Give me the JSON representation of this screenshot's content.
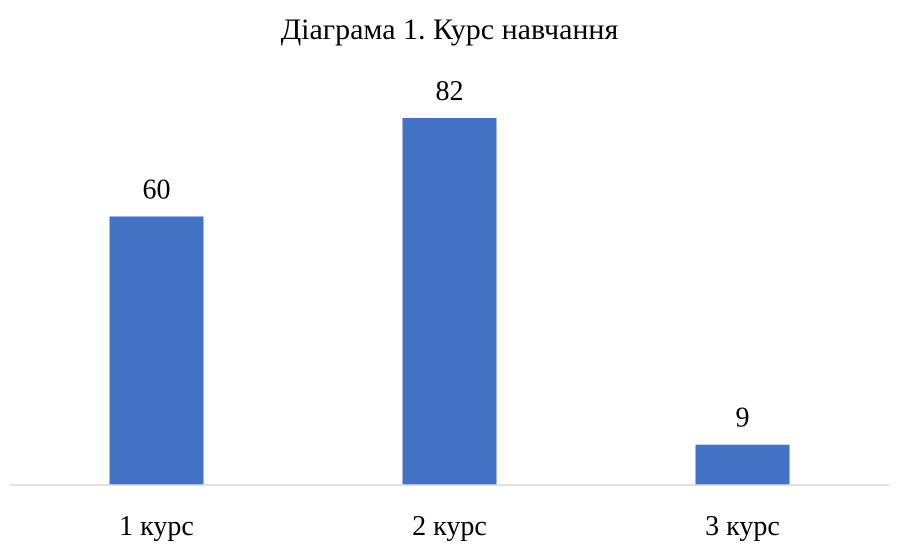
{
  "chart_data": {
    "type": "bar",
    "title": "Діаграма 1. Курс навчання",
    "categories": [
      "1 курс",
      "2 курс",
      "3 курс"
    ],
    "values": [
      60,
      82,
      9
    ],
    "ylim": [
      0,
      82
    ],
    "show_data_labels": true,
    "grid": false,
    "legend": "none",
    "bar_color": "#4472C4",
    "axis_color": "#D9D9D9"
  }
}
